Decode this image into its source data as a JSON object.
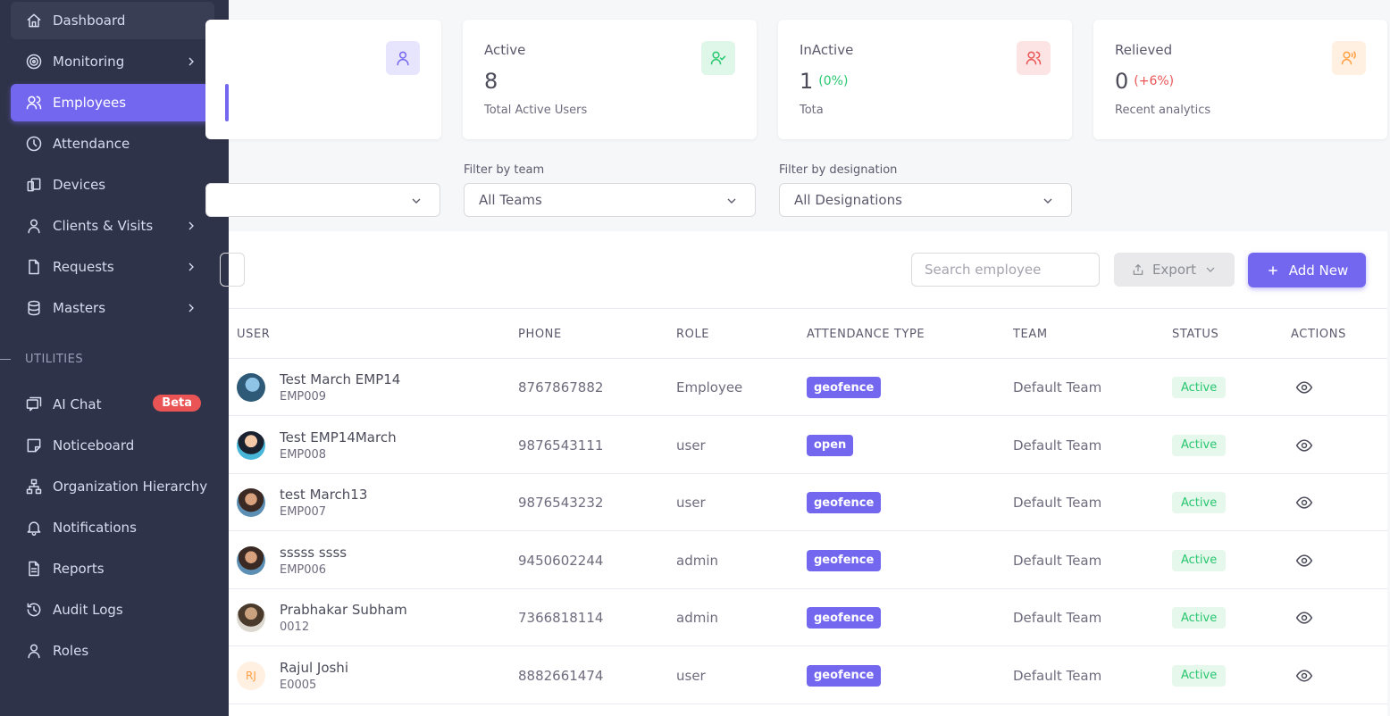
{
  "sidebar": {
    "items": [
      {
        "label": "Dashboard",
        "icon": "home-icon"
      },
      {
        "label": "Monitoring",
        "icon": "target-icon"
      },
      {
        "label": "Employees",
        "icon": "users-icon"
      },
      {
        "label": "Attendance",
        "icon": "clock-icon"
      },
      {
        "label": "Devices",
        "icon": "devices-icon"
      },
      {
        "label": "Clients & Visits",
        "icon": "user-icon"
      },
      {
        "label": "Requests",
        "icon": "file-icon"
      },
      {
        "label": "Masters",
        "icon": "database-icon"
      }
    ],
    "section_label": "UTILITIES",
    "utilities": [
      {
        "label": "AI Chat",
        "icon": "chat-icon",
        "badge": "Beta"
      },
      {
        "label": "Noticeboard",
        "icon": "note-icon"
      },
      {
        "label": "Organization Hierarchy",
        "icon": "hierarchy-icon"
      },
      {
        "label": "Notifications",
        "icon": "bell-icon"
      },
      {
        "label": "Reports",
        "icon": "report-icon"
      },
      {
        "label": "Audit Logs",
        "icon": "history-icon"
      },
      {
        "label": "Roles",
        "icon": "user-icon"
      }
    ]
  },
  "stats": [
    {
      "title": "Active",
      "value": "8",
      "delta": "",
      "sub": "Total Active Users",
      "accent": "#28c76f",
      "bg": "#dff7e9"
    },
    {
      "title": "InActive",
      "value": "1",
      "delta": "(0%)",
      "delta_color": "#28c76f",
      "sub": "Tota",
      "accent": "#ea5455",
      "bg": "#fce4e4"
    },
    {
      "title": "Relieved",
      "value": "0",
      "delta": "(+6%)",
      "delta_color": "#ea5455",
      "sub": "Recent analytics",
      "accent": "#ff9f43",
      "bg": "#fff0e1"
    }
  ],
  "first_card_accent": "#7367f0",
  "filters": {
    "team_label": "Filter by team",
    "team_value": "All Teams",
    "designation_label": "Filter by designation",
    "designation_value": "All Designations"
  },
  "toolbar": {
    "search_placeholder": "Search employee",
    "export_label": "Export",
    "add_label": "Add New"
  },
  "table": {
    "headers": [
      "USER",
      "PHONE",
      "ROLE",
      "ATTENDANCE TYPE",
      "TEAM",
      "STATUS",
      "ACTIONS"
    ],
    "rows": [
      {
        "name": "Test March EMP14",
        "code": "EMP009",
        "phone": "8767867882",
        "role": "Employee",
        "attendance": "geofence",
        "team": "Default Team",
        "status": "Active",
        "avatar": "img1"
      },
      {
        "name": "Test EMP14March",
        "code": "EMP008",
        "phone": "9876543111",
        "role": "user",
        "attendance": "open",
        "team": "Default Team",
        "status": "Active",
        "avatar": "img2"
      },
      {
        "name": "test March13",
        "code": "EMP007",
        "phone": "9876543232",
        "role": "user",
        "attendance": "geofence",
        "team": "Default Team",
        "status": "Active",
        "avatar": "img3"
      },
      {
        "name": "sssss ssss",
        "code": "EMP006",
        "phone": "9450602244",
        "role": "admin",
        "attendance": "geofence",
        "team": "Default Team",
        "status": "Active",
        "avatar": "img3"
      },
      {
        "name": "Prabhakar Subham",
        "code": "0012",
        "phone": "7366818114",
        "role": "admin",
        "attendance": "geofence",
        "team": "Default Team",
        "status": "Active",
        "avatar": "img4"
      },
      {
        "name": "Rajul Joshi",
        "code": "E0005",
        "phone": "8882661474",
        "role": "user",
        "attendance": "geofence",
        "team": "Default Team",
        "status": "Active",
        "avatar": "initials",
        "initials": "RJ"
      }
    ]
  }
}
